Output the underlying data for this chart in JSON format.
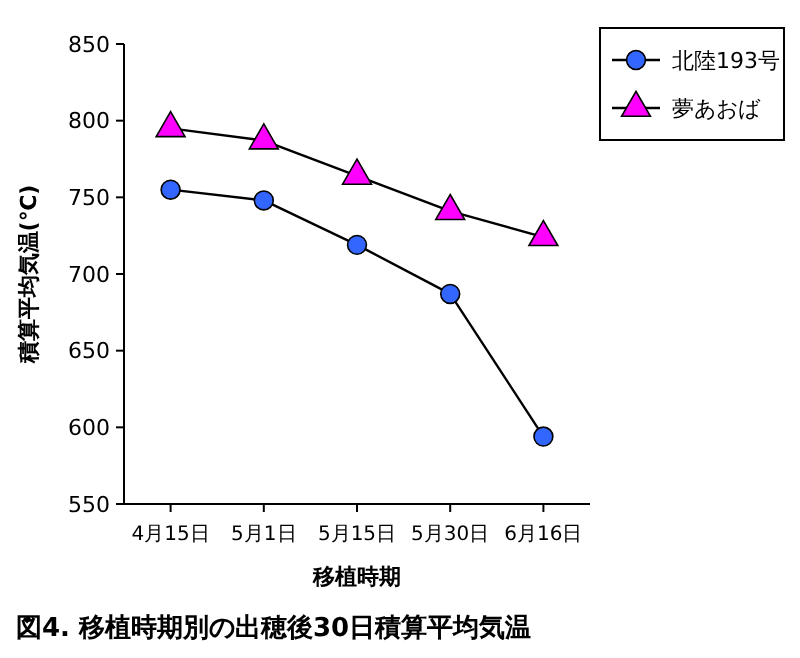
{
  "chart_data": {
    "type": "line",
    "xlabel": "移植時期",
    "ylabel": "積算平均気温(℃)",
    "categories": [
      "4月15日",
      "5月1日",
      "5月15日",
      "5月30日",
      "6月16日"
    ],
    "series": [
      {
        "name": "北陸193号",
        "color": "#3366ff",
        "marker": "circle",
        "values": [
          755,
          748,
          719,
          687,
          594
        ]
      },
      {
        "name": "夢あおば",
        "color": "#ff00ff",
        "marker": "triangle",
        "values": [
          795,
          787,
          764,
          741,
          724
        ]
      }
    ],
    "ylim": [
      550,
      850
    ],
    "yticks": [
      550,
      600,
      650,
      700,
      750,
      800,
      850
    ],
    "grid": false,
    "legend": "top right",
    "annotations": [
      "図4. 移植時期別の出穂後30日積算平均気温"
    ]
  }
}
